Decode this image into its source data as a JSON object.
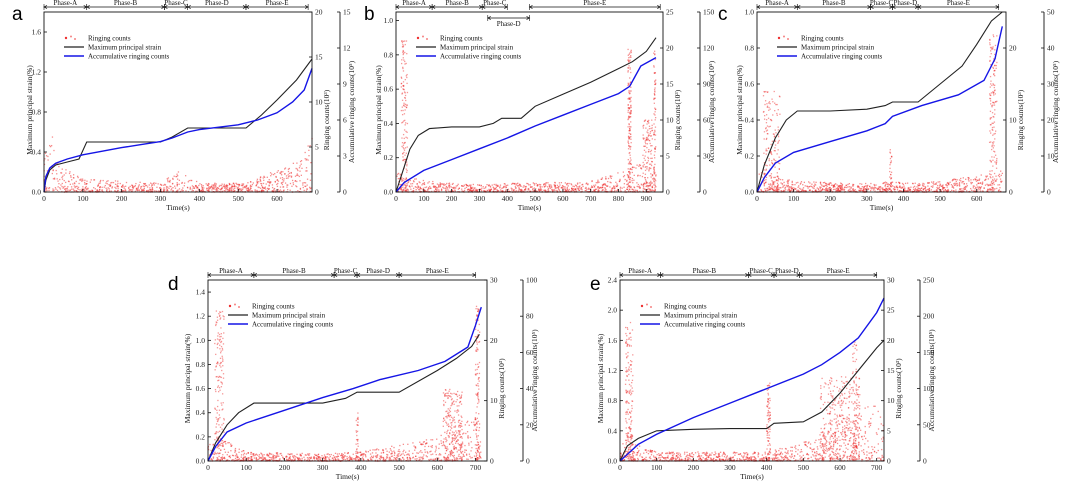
{
  "figure": {
    "title": ""
  },
  "colors": {
    "strain": "#222222",
    "accum": "#1515e6",
    "ring": "#ee3030",
    "axis": "#111111"
  },
  "labels": {
    "xlabel": "Time(s)",
    "ylabel_left": "Maximum principal strain(%)",
    "ylabel_ring": "Ringing counts(10³)",
    "ylabel_accum": "Accumulative ringing counts(10⁵)"
  },
  "chart_data": [
    {
      "id": "a",
      "type": "line",
      "panel_label": "a",
      "xlim": [
        0,
        690
      ],
      "xticks": [
        0,
        100,
        200,
        300,
        400,
        500,
        600
      ],
      "ylim_left": [
        0,
        1.8
      ],
      "yticks_left": [
        "0.0",
        "0.4",
        "0.8",
        "1.2",
        "1.6"
      ],
      "ylim_ring": [
        0,
        20
      ],
      "yticks_ring": [
        "0",
        "5",
        "10",
        "15",
        "20"
      ],
      "ylim_accum": [
        0,
        15
      ],
      "yticks_accum": [
        "0",
        "3",
        "6",
        "9",
        "12",
        "15"
      ],
      "legend": [
        "Ringing counts",
        "Maximum principal strain",
        "Accumulative ringing counts"
      ],
      "phases": [
        {
          "label": "Phase-A",
          "start": 0,
          "end": 110
        },
        {
          "label": "Phase-B",
          "start": 110,
          "end": 310
        },
        {
          "label": "Phase-C",
          "start": 310,
          "end": 370
        },
        {
          "label": "Phase-D",
          "start": 370,
          "end": 520
        },
        {
          "label": "Phase-E",
          "start": 520,
          "end": 680
        }
      ],
      "series": [
        {
          "name": "Maximum principal strain",
          "axis": "left",
          "x": [
            0,
            5,
            15,
            30,
            60,
            90,
            110,
            200,
            300,
            330,
            370,
            400,
            500,
            520,
            560,
            600,
            650,
            690
          ],
          "y": [
            0,
            0.12,
            0.22,
            0.27,
            0.3,
            0.33,
            0.5,
            0.5,
            0.5,
            0.55,
            0.64,
            0.64,
            0.64,
            0.64,
            0.77,
            0.92,
            1.12,
            1.33
          ]
        },
        {
          "name": "Accumulative ringing counts",
          "axis": "accum",
          "x": [
            0,
            5,
            15,
            30,
            60,
            100,
            150,
            200,
            250,
            300,
            330,
            370,
            400,
            450,
            500,
            550,
            600,
            640,
            670,
            690
          ],
          "y": [
            0,
            1.3,
            2.0,
            2.4,
            2.75,
            3.1,
            3.4,
            3.7,
            3.95,
            4.2,
            4.5,
            5.0,
            5.2,
            5.4,
            5.6,
            6.0,
            6.6,
            7.5,
            8.5,
            10.3
          ]
        }
      ],
      "ringing_profile": {
        "x": [
          0,
          20,
          50,
          100,
          300,
          350,
          400,
          520,
          600,
          660,
          690
        ],
        "hi": [
          4,
          7,
          3,
          1.5,
          1,
          2.5,
          1,
          1,
          2.5,
          3.5,
          6
        ]
      },
      "ringing_spikes": []
    },
    {
      "id": "b",
      "type": "line",
      "panel_label": "b",
      "xlim": [
        0,
        960
      ],
      "xticks": [
        0,
        100,
        200,
        300,
        400,
        500,
        600,
        700,
        800,
        900
      ],
      "ylim_left": [
        0,
        1.05
      ],
      "yticks_left": [
        "0.0",
        "0.2",
        "0.4",
        "0.6",
        "0.8",
        "1.0"
      ],
      "ylim_ring": [
        0,
        25
      ],
      "yticks_ring": [
        "0",
        "5",
        "10",
        "15",
        "20",
        "25"
      ],
      "ylim_accum": [
        0,
        150
      ],
      "yticks_accum": [
        "0",
        "30",
        "60",
        "90",
        "120",
        "150"
      ],
      "legend": [
        "Ringing counts",
        "Maximum principal strain",
        "Accumulative ringing counts"
      ],
      "phases": [
        {
          "label": "Phase-A",
          "start": 0,
          "end": 130
        },
        {
          "label": "Phase-B",
          "start": 130,
          "end": 310
        },
        {
          "label": "Phase-C",
          "start": 310,
          "end": 400
        },
        {
          "label": "Phase-D",
          "start": 330,
          "end": 480
        },
        {
          "label": "Phase-E",
          "start": 480,
          "end": 950
        }
      ],
      "series": [
        {
          "name": "Maximum principal strain",
          "axis": "left",
          "x": [
            0,
            20,
            50,
            80,
            120,
            200,
            300,
            350,
            380,
            450,
            500,
            600,
            700,
            800,
            850,
            900,
            935
          ],
          "y": [
            0,
            0.1,
            0.25,
            0.33,
            0.37,
            0.38,
            0.38,
            0.4,
            0.43,
            0.43,
            0.5,
            0.57,
            0.64,
            0.72,
            0.76,
            0.82,
            0.9
          ]
        },
        {
          "name": "Accumulative ringing counts",
          "axis": "accum",
          "x": [
            0,
            30,
            100,
            200,
            300,
            400,
            500,
            600,
            700,
            800,
            840,
            880,
            935
          ],
          "y": [
            0,
            8,
            18,
            27,
            36,
            45,
            55,
            64,
            73,
            82,
            88,
            105,
            112
          ]
        }
      ],
      "ringing_profile": {
        "x": [
          0,
          50,
          120,
          300,
          400,
          700,
          820,
          880,
          935
        ],
        "hi": [
          3,
          2,
          1.5,
          1,
          1.2,
          1.5,
          3,
          4,
          5
        ]
      },
      "ringing_spikes": [
        {
          "x": 30,
          "w": 22,
          "h": 21,
          "n": 140
        },
        {
          "x": 840,
          "w": 12,
          "h": 20,
          "n": 150
        },
        {
          "x": 905,
          "w": 35,
          "h": 10,
          "n": 130
        },
        {
          "x": 930,
          "w": 8,
          "h": 20,
          "n": 80
        }
      ]
    },
    {
      "id": "c",
      "type": "line",
      "panel_label": "c",
      "xlim": [
        0,
        680
      ],
      "xticks": [
        0,
        100,
        200,
        300,
        400,
        500,
        600
      ],
      "ylim_left": [
        0,
        1.0
      ],
      "yticks_left": [
        "0.0",
        "0.2",
        "0.4",
        "0.6",
        "0.8",
        "1.0"
      ],
      "ylim_ring": [
        0,
        25
      ],
      "yticks_ring": [
        "0",
        "10",
        "20"
      ],
      "ylim_accum": [
        0,
        50
      ],
      "yticks_accum": [
        "0",
        "10",
        "20",
        "30",
        "40",
        "50"
      ],
      "legend": [
        "Ringing counts",
        "Maximum principal strain",
        "Accumulative ringing counts"
      ],
      "phases": [
        {
          "label": "Phase-A",
          "start": 0,
          "end": 110
        },
        {
          "label": "Phase-B",
          "start": 110,
          "end": 310
        },
        {
          "label": "Phase-C",
          "start": 310,
          "end": 370
        },
        {
          "label": "Phase-D",
          "start": 370,
          "end": 440
        },
        {
          "label": "Phase-E",
          "start": 440,
          "end": 660
        }
      ],
      "series": [
        {
          "name": "Maximum principal strain",
          "axis": "left",
          "x": [
            0,
            20,
            50,
            80,
            110,
            200,
            300,
            350,
            370,
            440,
            500,
            560,
            600,
            640,
            670
          ],
          "y": [
            0,
            0.15,
            0.3,
            0.4,
            0.45,
            0.45,
            0.46,
            0.48,
            0.5,
            0.5,
            0.6,
            0.7,
            0.82,
            0.95,
            1.0
          ]
        },
        {
          "name": "Accumulative ringing counts",
          "axis": "accum",
          "x": [
            0,
            20,
            50,
            100,
            200,
            300,
            350,
            370,
            450,
            550,
            620,
            650,
            670
          ],
          "y": [
            0,
            4,
            8,
            11,
            14,
            17,
            19,
            21,
            24,
            27,
            31,
            37,
            46
          ]
        }
      ],
      "ringing_profile": {
        "x": [
          0,
          30,
          100,
          300,
          370,
          450,
          620,
          670
        ],
        "hi": [
          3,
          2.5,
          1.5,
          1.2,
          1.5,
          1.2,
          2.5,
          4
        ]
      },
      "ringing_spikes": [
        {
          "x": 40,
          "w": 45,
          "h": 14,
          "n": 150
        },
        {
          "x": 365,
          "w": 6,
          "h": 6,
          "n": 30
        },
        {
          "x": 645,
          "w": 20,
          "h": 22,
          "n": 150
        }
      ]
    },
    {
      "id": "d",
      "type": "line",
      "panel_label": "d",
      "xlim": [
        0,
        730
      ],
      "xticks": [
        0,
        100,
        200,
        300,
        400,
        500,
        600,
        700
      ],
      "ylim_left": [
        0,
        1.5
      ],
      "yticks_left": [
        "0.0",
        "0.2",
        "0.4",
        "0.6",
        "0.8",
        "1.0",
        "1.2",
        "1.4"
      ],
      "ylim_ring": [
        0,
        30
      ],
      "yticks_ring": [
        "0",
        "10",
        "20",
        "30"
      ],
      "ylim_accum": [
        0,
        100
      ],
      "yticks_accum": [
        "0",
        "20",
        "40",
        "60",
        "80",
        "100"
      ],
      "legend": [
        "Ringing counts",
        "Maximum principal strain",
        "Accumulative ringing counts"
      ],
      "phases": [
        {
          "label": "Phase-A",
          "start": 0,
          "end": 120
        },
        {
          "label": "Phase-B",
          "start": 120,
          "end": 330
        },
        {
          "label": "Phase-C",
          "start": 330,
          "end": 390
        },
        {
          "label": "Phase-D",
          "start": 390,
          "end": 500
        },
        {
          "label": "Phase-E",
          "start": 500,
          "end": 700
        }
      ],
      "series": [
        {
          "name": "Maximum principal strain",
          "axis": "left",
          "x": [
            0,
            20,
            50,
            80,
            120,
            200,
            300,
            360,
            390,
            500,
            600,
            650,
            690,
            710
          ],
          "y": [
            0,
            0.15,
            0.3,
            0.4,
            0.48,
            0.48,
            0.48,
            0.52,
            0.57,
            0.57,
            0.75,
            0.85,
            0.95,
            1.05
          ]
        },
        {
          "name": "Accumulative ringing counts",
          "axis": "accum",
          "x": [
            0,
            20,
            50,
            100,
            200,
            300,
            380,
            450,
            550,
            620,
            680,
            700,
            715
          ],
          "y": [
            0,
            8,
            16,
            21,
            28,
            35,
            40,
            45,
            50,
            55,
            63,
            75,
            85
          ]
        }
      ],
      "ringing_profile": {
        "x": [
          0,
          30,
          100,
          300,
          400,
          600,
          700,
          715
        ],
        "hi": [
          3,
          4,
          1.5,
          1.2,
          1.5,
          4,
          8,
          5
        ]
      },
      "ringing_spikes": [
        {
          "x": 30,
          "w": 25,
          "h": 25,
          "n": 160
        },
        {
          "x": 390,
          "w": 6,
          "h": 8,
          "n": 30
        },
        {
          "x": 640,
          "w": 50,
          "h": 12,
          "n": 200
        },
        {
          "x": 705,
          "w": 12,
          "h": 26,
          "n": 120
        }
      ]
    },
    {
      "id": "e",
      "type": "line",
      "panel_label": "e",
      "xlim": [
        0,
        720
      ],
      "xticks": [
        0,
        100,
        200,
        300,
        400,
        500,
        600,
        700
      ],
      "ylim_left": [
        0,
        2.4
      ],
      "yticks_left": [
        "0.0",
        "0.4",
        "0.8",
        "1.2",
        "1.6",
        "2.0",
        "2.4"
      ],
      "ylim_ring": [
        0,
        30
      ],
      "yticks_ring": [
        "0",
        "5",
        "10",
        "15",
        "20",
        "25",
        "30"
      ],
      "ylim_accum": [
        0,
        250
      ],
      "yticks_accum": [
        "0",
        "50",
        "100",
        "150",
        "200",
        "250"
      ],
      "legend": [
        "Ringing counts",
        "Maximum principal strain",
        "Accumulative ringing counts"
      ],
      "phases": [
        {
          "label": "Phase-A",
          "start": 0,
          "end": 110
        },
        {
          "label": "Phase-B",
          "start": 110,
          "end": 350
        },
        {
          "label": "Phase-C",
          "start": 350,
          "end": 420
        },
        {
          "label": "Phase-D",
          "start": 420,
          "end": 490
        },
        {
          "label": "Phase-E",
          "start": 490,
          "end": 700
        }
      ],
      "series": [
        {
          "name": "Maximum principal strain",
          "axis": "left",
          "x": [
            0,
            20,
            50,
            100,
            200,
            300,
            400,
            420,
            500,
            550,
            600,
            650,
            700,
            720
          ],
          "y": [
            0,
            0.2,
            0.3,
            0.4,
            0.42,
            0.43,
            0.43,
            0.5,
            0.52,
            0.65,
            0.9,
            1.2,
            1.5,
            1.6
          ]
        },
        {
          "name": "Accumulative ringing counts",
          "axis": "accum",
          "x": [
            0,
            50,
            100,
            200,
            300,
            400,
            500,
            550,
            600,
            650,
            700,
            720
          ],
          "y": [
            0,
            23,
            37,
            60,
            80,
            100,
            120,
            133,
            150,
            170,
            205,
            225
          ]
        }
      ],
      "ringing_profile": {
        "x": [
          0,
          30,
          100,
          400,
          550,
          600,
          720
        ],
        "hi": [
          3,
          3,
          1.5,
          1.5,
          4,
          8,
          10
        ]
      },
      "ringing_spikes": [
        {
          "x": 25,
          "w": 20,
          "h": 23,
          "n": 160
        },
        {
          "x": 405,
          "w": 10,
          "h": 13,
          "n": 80
        },
        {
          "x": 600,
          "w": 110,
          "h": 14,
          "n": 350
        },
        {
          "x": 640,
          "w": 12,
          "h": 20,
          "n": 60
        }
      ]
    }
  ]
}
